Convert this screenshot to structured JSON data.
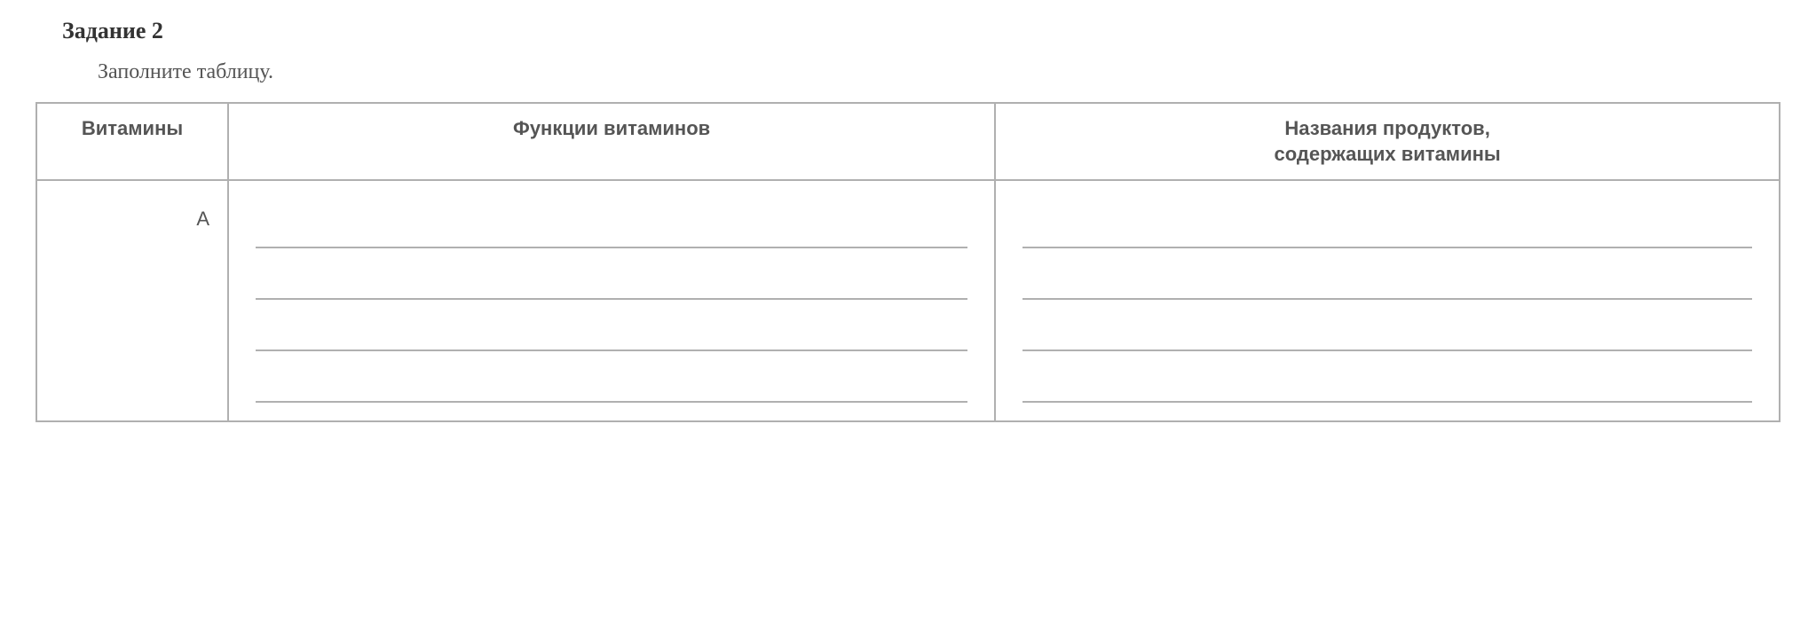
{
  "task": {
    "title": "Задание 2",
    "instruction": "Заполните таблицу."
  },
  "table": {
    "headers": {
      "col1": "Витамины",
      "col2": "Функции витаминов",
      "col3": "Названия продуктов,\nсодержащих витамины"
    },
    "rows": [
      {
        "label": "A",
        "lines_col2": 4,
        "lines_col3": 4
      }
    ]
  },
  "style": {
    "border_color": "#b0b0b0",
    "header_text_color": "#555555",
    "body_text_color": "#555555",
    "title_color": "#333333",
    "background": "#ffffff",
    "title_fontsize": 26,
    "header_fontsize": 22,
    "instruction_fontsize": 24
  }
}
